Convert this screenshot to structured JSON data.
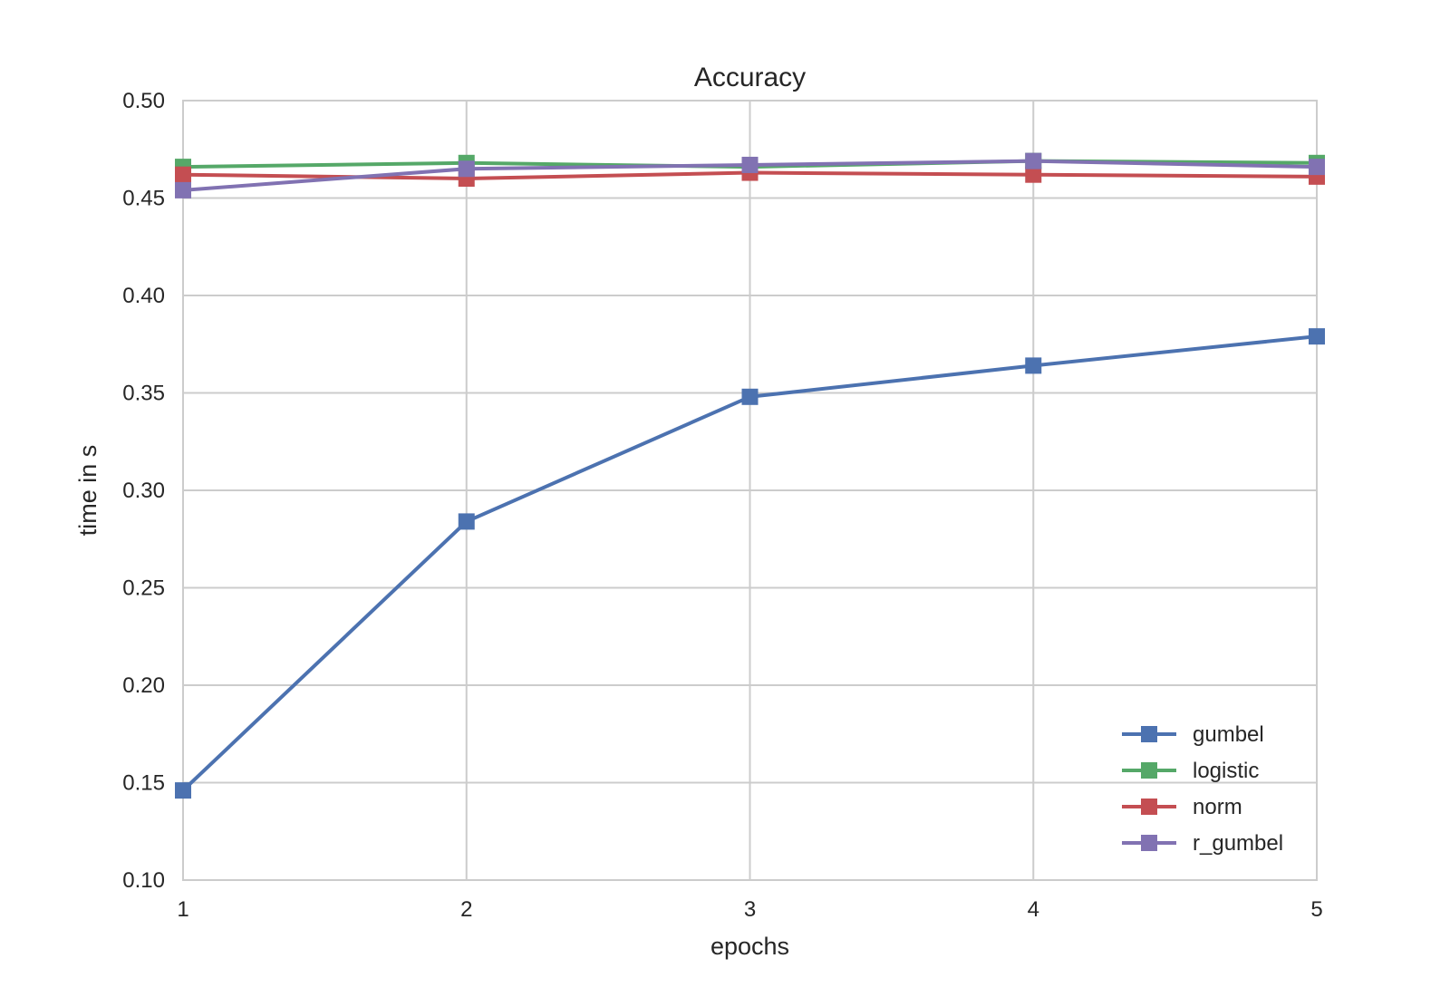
{
  "chart_data": {
    "type": "line",
    "title": "Accuracy",
    "xlabel": "epochs",
    "ylabel": "time in s",
    "x": [
      1,
      2,
      3,
      4,
      5
    ],
    "xlim": [
      1,
      5
    ],
    "ylim": [
      0.1,
      0.5
    ],
    "xticks": [
      "1",
      "2",
      "3",
      "4",
      "5"
    ],
    "yticks": [
      "0.10",
      "0.15",
      "0.20",
      "0.25",
      "0.30",
      "0.35",
      "0.40",
      "0.45",
      "0.50"
    ],
    "grid": true,
    "legend_position": "lower-right",
    "marker": "square",
    "series": [
      {
        "name": "gumbel",
        "color": "#4c72b0",
        "values": [
          0.146,
          0.284,
          0.348,
          0.364,
          0.379
        ]
      },
      {
        "name": "logistic",
        "color": "#55a868",
        "values": [
          0.466,
          0.468,
          0.466,
          0.469,
          0.468
        ]
      },
      {
        "name": "norm",
        "color": "#c44e52",
        "values": [
          0.462,
          0.46,
          0.463,
          0.462,
          0.461
        ]
      },
      {
        "name": "r_gumbel",
        "color": "#8172b2",
        "values": [
          0.454,
          0.465,
          0.467,
          0.469,
          0.466
        ]
      }
    ]
  }
}
